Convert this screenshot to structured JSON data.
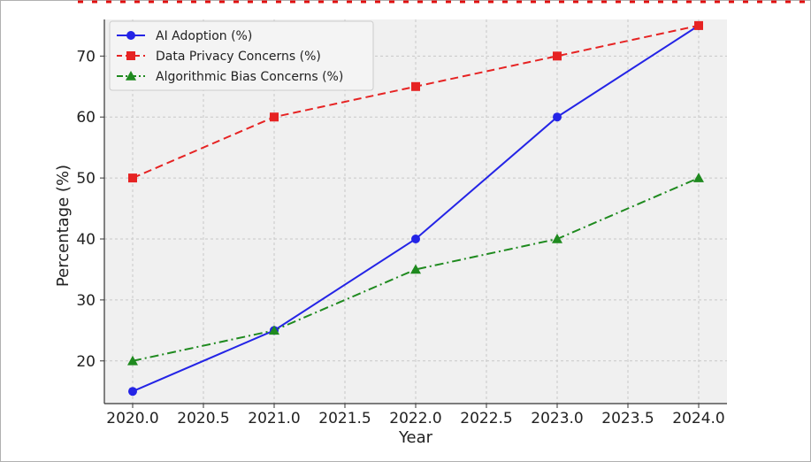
{
  "chart_data": {
    "type": "line",
    "title": "",
    "xlabel": "Year",
    "ylabel": "Percentage (%)",
    "x": [
      2020,
      2021,
      2022,
      2023,
      2024
    ],
    "xticks": [
      "2020.0",
      "2020.5",
      "2021.0",
      "2021.5",
      "2022.0",
      "2022.5",
      "2023.0",
      "2023.5",
      "2024.0"
    ],
    "xtick_values": [
      2020.0,
      2020.5,
      2021.0,
      2021.5,
      2022.0,
      2022.5,
      2023.0,
      2023.5,
      2024.0
    ],
    "yticks": [
      "20",
      "30",
      "40",
      "50",
      "60",
      "70"
    ],
    "ytick_values": [
      20,
      30,
      40,
      50,
      60,
      70
    ],
    "xlim": [
      2019.8,
      2024.2
    ],
    "ylim": [
      13,
      76
    ],
    "grid": true,
    "legend_position": "top-left",
    "series": [
      {
        "name": "AI Adoption (%)",
        "values": [
          15,
          25,
          40,
          60,
          75
        ],
        "color": "#2424e6",
        "dash": "solid",
        "marker": "circle"
      },
      {
        "name": "Data Privacy Concerns (%)",
        "values": [
          50,
          60,
          65,
          70,
          75
        ],
        "color": "#e62323",
        "dash": "dashed",
        "marker": "square"
      },
      {
        "name": "Algorithmic Bias Concerns (%)",
        "values": [
          20,
          25,
          35,
          40,
          50
        ],
        "color": "#1f8a1f",
        "dash": "dashdot",
        "marker": "triangle"
      }
    ]
  },
  "colors": {
    "plot_background": "#f0f0f0",
    "grid": "#c8c8c8",
    "axis": "#333333",
    "frame_border": "#b0b0b0",
    "cropped_title_text": "#e01010"
  }
}
